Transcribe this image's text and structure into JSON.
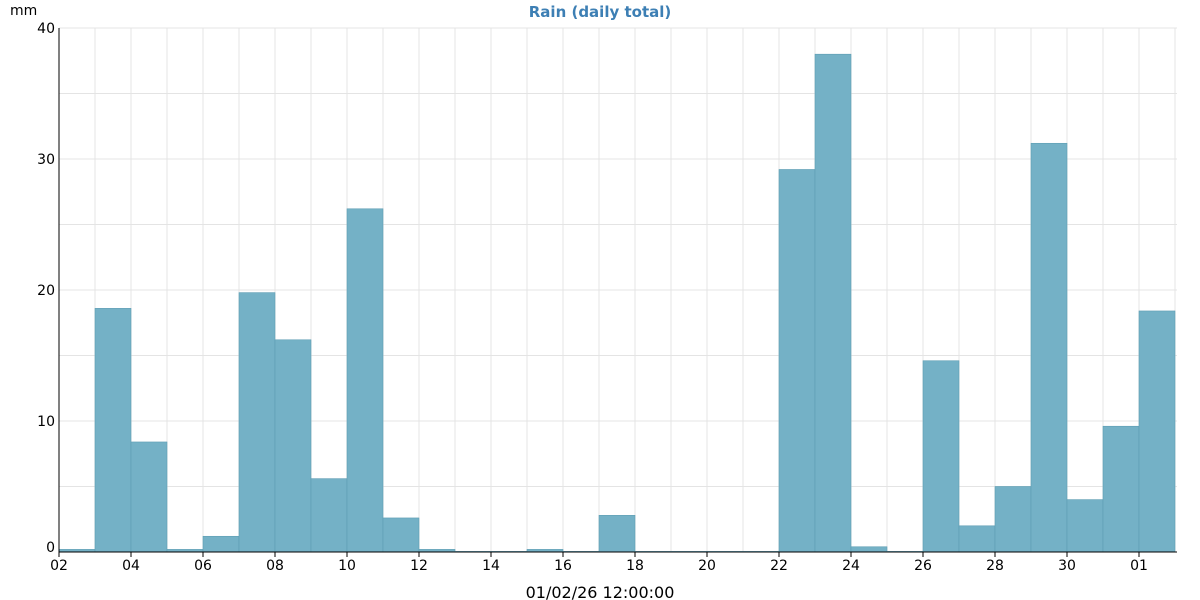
{
  "chart_data": {
    "type": "bar",
    "title": "Rain (daily total)",
    "ylabel": "mm",
    "xlabel": "01/02/26 12:00:00",
    "ylim": [
      0,
      40
    ],
    "yticks": [
      "0",
      "10",
      "20",
      "30",
      "40"
    ],
    "xticks": [
      "02",
      "04",
      "06",
      "08",
      "10",
      "12",
      "14",
      "16",
      "18",
      "20",
      "22",
      "24",
      "26",
      "28",
      "30",
      "01"
    ],
    "categories": [
      "02",
      "03",
      "04",
      "05",
      "06",
      "07",
      "08",
      "09",
      "10",
      "11",
      "12",
      "13",
      "14",
      "15",
      "16",
      "17",
      "18",
      "19",
      "20",
      "21",
      "22",
      "23",
      "24",
      "25",
      "26",
      "27",
      "28",
      "29",
      "30",
      "31",
      "01"
    ],
    "values": [
      0.2,
      18.6,
      8.4,
      0.2,
      1.2,
      19.8,
      16.2,
      5.6,
      26.2,
      2.6,
      0.2,
      0,
      0,
      0.2,
      0,
      2.8,
      0,
      0,
      0,
      0,
      29.2,
      38.0,
      0.4,
      0,
      14.6,
      2.0,
      5.0,
      31.2,
      4.0,
      9.6,
      18.4
    ],
    "grid": true,
    "colors": {
      "bar": "#74b1c6",
      "bar_edge": "#5e9db3",
      "title": "#3d7fb4"
    }
  }
}
